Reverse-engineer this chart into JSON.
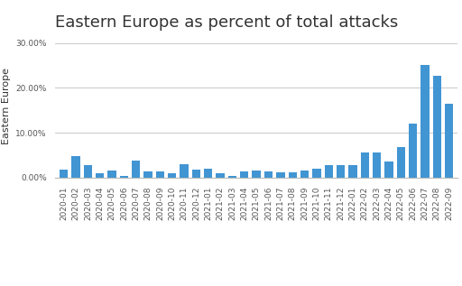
{
  "title": "Eastern Europe as percent of total attacks",
  "ylabel": "Eastern Europe",
  "categories": [
    "2020-01",
    "2020-02",
    "2020-03",
    "2020-04",
    "2020-05",
    "2020-06",
    "2020-07",
    "2020-08",
    "2020-09",
    "2020-10",
    "2020-11",
    "2020-12",
    "2021-01",
    "2021-02",
    "2021-03",
    "2021-04",
    "2021-05",
    "2021-06",
    "2021-07",
    "2021-08",
    "2021-09",
    "2021-10",
    "2021-11",
    "2021-12",
    "2022-01",
    "2022-02",
    "2022-03",
    "2022-04",
    "2022-05",
    "2022-06",
    "2022-07",
    "2022-08",
    "2022-09"
  ],
  "values": [
    0.0175,
    0.048,
    0.028,
    0.009,
    0.016,
    0.004,
    0.038,
    0.013,
    0.013,
    0.009,
    0.03,
    0.018,
    0.02,
    0.01,
    0.004,
    0.013,
    0.016,
    0.013,
    0.012,
    0.012,
    0.015,
    0.02,
    0.028,
    0.028,
    0.028,
    0.055,
    0.055,
    0.035,
    0.068,
    0.12,
    0.252,
    0.228,
    0.165
  ],
  "bar_color": "#4195D3",
  "ylim": [
    0,
    0.32
  ],
  "yticks": [
    0.0,
    0.1,
    0.2,
    0.3
  ],
  "ytick_labels": [
    "0.00%",
    "10.00%",
    "20.00%",
    "30.00%"
  ],
  "title_fontsize": 13,
  "ylabel_fontsize": 8,
  "tick_fontsize": 6.5,
  "background_color": "#ffffff",
  "grid_color": "#cccccc"
}
